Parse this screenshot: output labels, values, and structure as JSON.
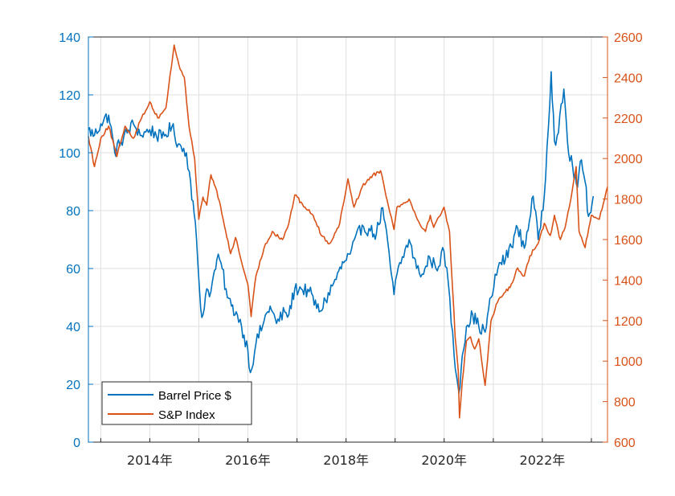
{
  "chart_data": {
    "type": "line",
    "x_axis": {
      "type": "date",
      "range": [
        "2012-10-01",
        "2023-05-01"
      ],
      "tick_dates": [
        "2014-01-01",
        "2016-01-01",
        "2018-01-01",
        "2020-01-01",
        "2022-01-01"
      ],
      "tick_labels": [
        "2014年",
        "2016年",
        "2018年",
        "2020年",
        "2022年"
      ],
      "minor_tick_dates": [
        "2013-01-01",
        "2014-01-01",
        "2015-01-01",
        "2016-01-01",
        "2017-01-01",
        "2018-01-01",
        "2019-01-01",
        "2020-01-01",
        "2021-01-01",
        "2022-01-01",
        "2023-01-01"
      ]
    },
    "y_left": {
      "range": [
        0,
        140
      ],
      "ticks": [
        0,
        20,
        40,
        60,
        80,
        100,
        120,
        140
      ],
      "color": "#0072BD"
    },
    "y_right": {
      "range": [
        600,
        2600
      ],
      "ticks": [
        600,
        800,
        1000,
        1200,
        1400,
        1600,
        1800,
        2000,
        2200,
        2400,
        2600
      ],
      "color": "#D95319"
    },
    "grid": true,
    "legend": {
      "position": "bottom-left"
    },
    "series": [
      {
        "name": "Barrel Price $",
        "axis": "left",
        "color": "#0072BD",
        "points": [
          [
            "2012-10-01",
            108
          ],
          [
            "2012-11-15",
            106
          ],
          [
            "2013-01-01",
            110
          ],
          [
            "2013-03-01",
            113
          ],
          [
            "2013-04-15",
            100
          ],
          [
            "2013-06-01",
            104
          ],
          [
            "2013-09-01",
            110
          ],
          [
            "2013-11-01",
            106
          ],
          [
            "2014-01-01",
            108
          ],
          [
            "2014-04-01",
            105
          ],
          [
            "2014-06-15",
            109
          ],
          [
            "2014-08-01",
            103
          ],
          [
            "2014-10-01",
            100
          ],
          [
            "2014-11-01",
            90
          ],
          [
            "2014-12-15",
            70
          ],
          [
            "2015-01-15",
            46
          ],
          [
            "2015-02-01",
            44
          ],
          [
            "2015-03-01",
            53
          ],
          [
            "2015-04-01",
            52
          ],
          [
            "2015-05-15",
            63
          ],
          [
            "2015-06-15",
            62
          ],
          [
            "2015-08-01",
            50
          ],
          [
            "2015-09-01",
            47
          ],
          [
            "2015-10-15",
            44
          ],
          [
            "2015-11-15",
            40
          ],
          [
            "2016-01-01",
            32
          ],
          [
            "2016-01-20",
            24
          ],
          [
            "2016-03-01",
            34
          ],
          [
            "2016-05-01",
            42
          ],
          [
            "2016-06-15",
            47
          ],
          [
            "2016-08-01",
            41
          ],
          [
            "2016-10-01",
            45
          ],
          [
            "2016-11-01",
            44
          ],
          [
            "2016-12-15",
            53
          ],
          [
            "2017-02-01",
            53
          ],
          [
            "2017-04-01",
            52
          ],
          [
            "2017-06-15",
            45
          ],
          [
            "2017-08-01",
            49
          ],
          [
            "2017-10-01",
            55
          ],
          [
            "2017-12-15",
            62
          ],
          [
            "2018-02-01",
            65
          ],
          [
            "2018-05-01",
            75
          ],
          [
            "2018-07-01",
            73
          ],
          [
            "2018-08-15",
            72
          ],
          [
            "2018-10-01",
            81
          ],
          [
            "2018-12-24",
            51
          ],
          [
            "2019-01-15",
            58
          ],
          [
            "2019-04-15",
            70
          ],
          [
            "2019-06-10",
            60
          ],
          [
            "2019-08-01",
            58
          ],
          [
            "2019-09-15",
            64
          ],
          [
            "2019-11-01",
            60
          ],
          [
            "2019-12-31",
            66
          ],
          [
            "2020-02-01",
            55
          ],
          [
            "2020-03-15",
            30
          ],
          [
            "2020-04-20",
            17
          ],
          [
            "2020-05-15",
            30
          ],
          [
            "2020-06-15",
            40
          ],
          [
            "2020-08-01",
            44
          ],
          [
            "2020-09-15",
            40
          ],
          [
            "2020-11-01",
            38
          ],
          [
            "2020-12-15",
            50
          ],
          [
            "2021-02-15",
            62
          ],
          [
            "2021-04-01",
            63
          ],
          [
            "2021-07-01",
            74
          ],
          [
            "2021-08-20",
            67
          ],
          [
            "2021-10-25",
            85
          ],
          [
            "2021-12-01",
            70
          ],
          [
            "2022-01-15",
            85
          ],
          [
            "2022-03-08",
            128
          ],
          [
            "2022-04-01",
            104
          ],
          [
            "2022-05-01",
            107
          ],
          [
            "2022-06-10",
            122
          ],
          [
            "2022-07-15",
            100
          ],
          [
            "2022-08-15",
            95
          ],
          [
            "2022-09-20",
            88
          ],
          [
            "2022-10-10",
            97
          ],
          [
            "2022-11-15",
            90
          ],
          [
            "2022-12-10",
            78
          ],
          [
            "2023-01-15",
            85
          ]
        ]
      },
      {
        "name": "S&P Index",
        "axis": "right",
        "color": "#D95319",
        "points": [
          [
            "2012-10-01",
            2110
          ],
          [
            "2012-11-15",
            1960
          ],
          [
            "2013-01-01",
            2100
          ],
          [
            "2013-03-01",
            2160
          ],
          [
            "2013-05-01",
            2010
          ],
          [
            "2013-07-01",
            2160
          ],
          [
            "2013-09-01",
            2100
          ],
          [
            "2013-11-01",
            2200
          ],
          [
            "2014-01-01",
            2280
          ],
          [
            "2014-03-01",
            2200
          ],
          [
            "2014-05-01",
            2250
          ],
          [
            "2014-07-01",
            2560
          ],
          [
            "2014-08-15",
            2440
          ],
          [
            "2014-09-15",
            2400
          ],
          [
            "2014-10-20",
            2160
          ],
          [
            "2014-12-01",
            2000
          ],
          [
            "2015-01-01",
            1700
          ],
          [
            "2015-02-01",
            1810
          ],
          [
            "2015-03-01",
            1770
          ],
          [
            "2015-04-01",
            1920
          ],
          [
            "2015-05-15",
            1840
          ],
          [
            "2015-07-01",
            1700
          ],
          [
            "2015-08-25",
            1530
          ],
          [
            "2015-10-01",
            1610
          ],
          [
            "2015-11-15",
            1490
          ],
          [
            "2016-01-01",
            1380
          ],
          [
            "2016-01-25",
            1220
          ],
          [
            "2016-03-01",
            1420
          ],
          [
            "2016-05-01",
            1560
          ],
          [
            "2016-07-01",
            1640
          ],
          [
            "2016-09-15",
            1600
          ],
          [
            "2016-11-01",
            1680
          ],
          [
            "2016-12-15",
            1820
          ],
          [
            "2017-03-01",
            1760
          ],
          [
            "2017-05-01",
            1720
          ],
          [
            "2017-07-01",
            1620
          ],
          [
            "2017-09-01",
            1580
          ],
          [
            "2017-11-15",
            1680
          ],
          [
            "2018-01-15",
            1900
          ],
          [
            "2018-03-01",
            1760
          ],
          [
            "2018-05-01",
            1860
          ],
          [
            "2018-07-01",
            1910
          ],
          [
            "2018-09-15",
            1940
          ],
          [
            "2018-12-24",
            1650
          ],
          [
            "2019-01-15",
            1760
          ],
          [
            "2019-04-15",
            1800
          ],
          [
            "2019-06-15",
            1700
          ],
          [
            "2019-08-15",
            1640
          ],
          [
            "2019-09-20",
            1720
          ],
          [
            "2019-10-15",
            1660
          ],
          [
            "2019-12-31",
            1760
          ],
          [
            "2020-02-10",
            1640
          ],
          [
            "2020-03-23",
            1120
          ],
          [
            "2020-04-15",
            950
          ],
          [
            "2020-04-24",
            720
          ],
          [
            "2020-05-15",
            900
          ],
          [
            "2020-06-15",
            1100
          ],
          [
            "2020-07-15",
            1120
          ],
          [
            "2020-08-15",
            1060
          ],
          [
            "2020-09-15",
            1110
          ],
          [
            "2020-11-01",
            880
          ],
          [
            "2020-12-15",
            1200
          ],
          [
            "2021-02-01",
            1290
          ],
          [
            "2021-04-01",
            1340
          ],
          [
            "2021-05-15",
            1380
          ],
          [
            "2021-07-01",
            1460
          ],
          [
            "2021-08-20",
            1420
          ],
          [
            "2021-10-01",
            1520
          ],
          [
            "2021-12-01",
            1580
          ],
          [
            "2022-01-15",
            1680
          ],
          [
            "2022-03-01",
            1620
          ],
          [
            "2022-04-01",
            1720
          ],
          [
            "2022-05-15",
            1600
          ],
          [
            "2022-06-20",
            1660
          ],
          [
            "2022-08-01",
            1800
          ],
          [
            "2022-09-10",
            1960
          ],
          [
            "2022-10-01",
            1640
          ],
          [
            "2022-11-15",
            1560
          ],
          [
            "2023-01-01",
            1720
          ],
          [
            "2023-03-01",
            1700
          ],
          [
            "2023-05-01",
            1860
          ]
        ]
      }
    ]
  }
}
